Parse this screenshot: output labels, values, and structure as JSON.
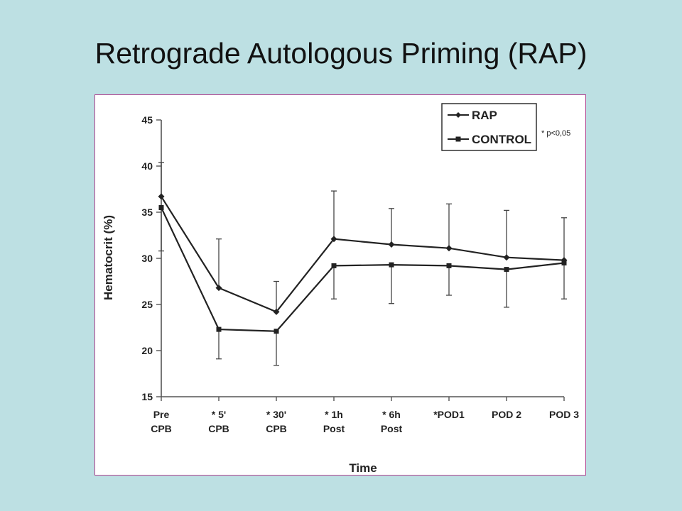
{
  "slide": {
    "title": "Retrograde Autologous Priming (RAP)"
  },
  "chart_data": {
    "type": "line",
    "title": "",
    "xlabel": "Time",
    "ylabel": "Hematocrit (%)",
    "ylim": [
      15,
      45
    ],
    "yticks": [
      15,
      20,
      25,
      30,
      35,
      40,
      45
    ],
    "categories": [
      [
        "Pre",
        "CPB"
      ],
      [
        "* 5'",
        "CPB"
      ],
      [
        "* 30'",
        "CPB"
      ],
      [
        "* 1h",
        "Post"
      ],
      [
        "* 6h",
        "Post"
      ],
      [
        "*POD1"
      ],
      [
        "POD 2"
      ],
      [
        "POD 3"
      ]
    ],
    "series": [
      {
        "name": "RAP",
        "marker": "diamond",
        "values": [
          36.7,
          26.8,
          24.2,
          32.1,
          31.5,
          31.1,
          30.1,
          29.8
        ],
        "error_upper": [
          40.4,
          32.1,
          27.5,
          37.3,
          35.4,
          35.9,
          35.2,
          34.4
        ]
      },
      {
        "name": "CONTROL",
        "marker": "square",
        "values": [
          35.5,
          22.3,
          22.1,
          29.2,
          29.3,
          29.2,
          28.8,
          29.5
        ],
        "error_lower": [
          30.8,
          19.1,
          18.4,
          25.6,
          25.1,
          26.0,
          24.7,
          25.6
        ]
      }
    ],
    "legend": {
      "position": "top-right",
      "entries": [
        "RAP",
        "CONTROL"
      ]
    },
    "annotation": "* p<0,05",
    "grid": false
  }
}
